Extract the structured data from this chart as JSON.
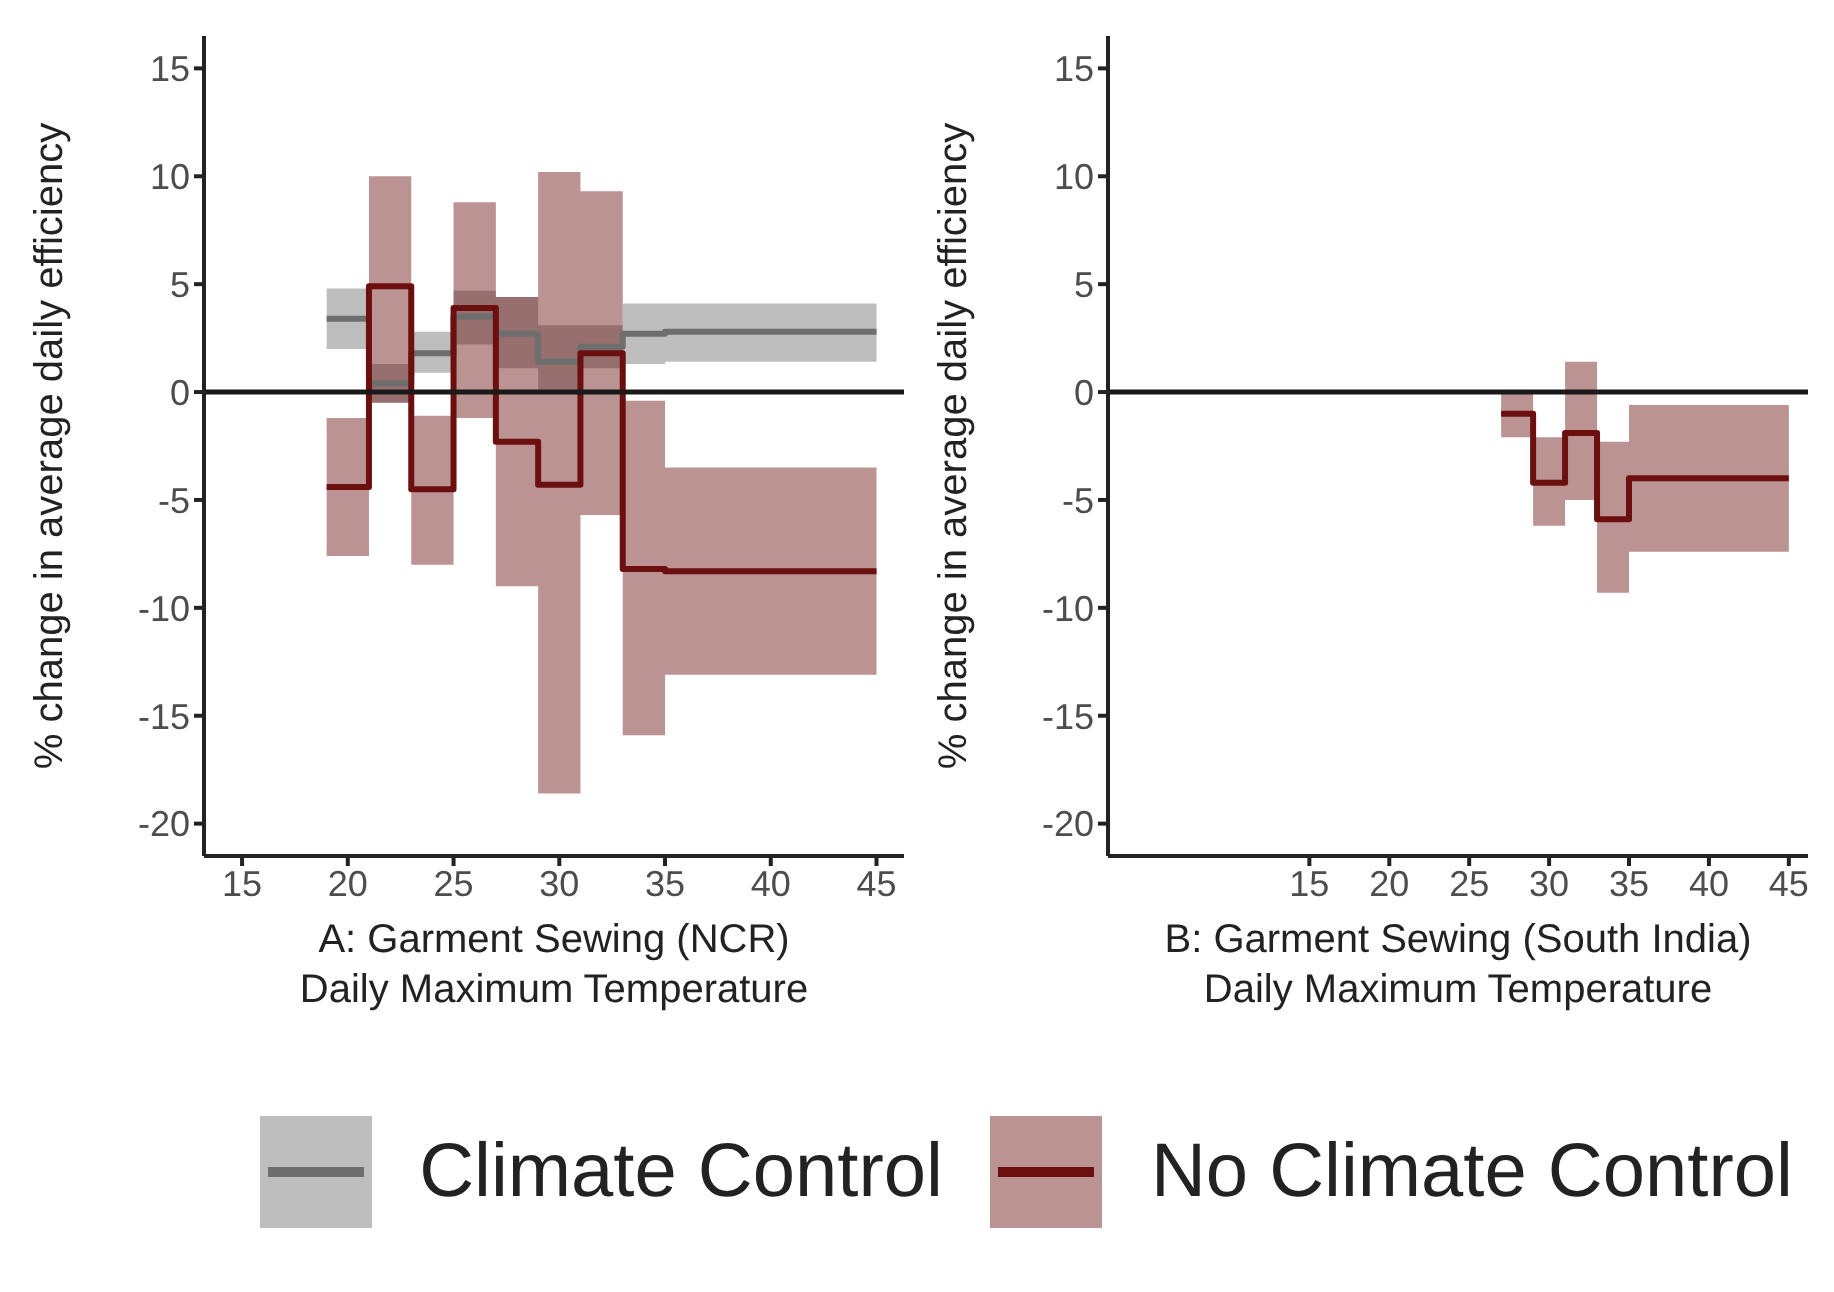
{
  "chart_data": [
    {
      "type": "step",
      "xlabel": "A: Garment Sewing (NCR)\nDaily Maximum Temperature",
      "ylabel": "% change in average daily efficiency",
      "xlim": [
        13.2,
        46.3
      ],
      "xticks": [
        15,
        20,
        25,
        30,
        35,
        40,
        45
      ],
      "ylim": [
        -21.5,
        16.5
      ],
      "yticks": [
        -20,
        -15,
        -10,
        -5,
        0,
        5,
        10,
        15
      ],
      "legend": "bottom",
      "ref_lines": [
        {
          "axis": "y",
          "value": 0,
          "color": "#1a1a1a"
        }
      ],
      "series": [
        {
          "name": "Climate Control",
          "color": "#6e6e6e",
          "x": [
            19,
            21,
            23,
            25,
            27,
            29,
            31,
            33,
            35,
            45
          ],
          "values": [
            3.4,
            0.4,
            1.8,
            3.5,
            2.7,
            1.4,
            2.1,
            2.7,
            2.8,
            2.8
          ],
          "lower": [
            2.0,
            -0.5,
            0.9,
            2.2,
            1.1,
            -0.1,
            1.1,
            1.3,
            1.4,
            1.4
          ],
          "upper": [
            4.8,
            1.3,
            2.8,
            4.7,
            4.4,
            3.1,
            3.1,
            4.1,
            4.1,
            4.1
          ]
        },
        {
          "name": "No Climate Control",
          "color": "#6b0f0f",
          "x": [
            19,
            21,
            23,
            25,
            27,
            29,
            31,
            33,
            35,
            45
          ],
          "values": [
            -4.4,
            4.9,
            -4.5,
            3.9,
            -2.3,
            -4.3,
            1.8,
            -8.2,
            -8.3,
            -8.3
          ],
          "lower": [
            -7.6,
            -0.5,
            -8.0,
            -1.2,
            -9.0,
            -18.6,
            -5.7,
            -15.9,
            -13.1,
            -13.1
          ],
          "upper": [
            -1.2,
            10.0,
            -1.1,
            8.8,
            4.4,
            10.2,
            9.3,
            -0.4,
            -3.5,
            -3.5
          ]
        }
      ]
    },
    {
      "type": "step",
      "xlabel": "B: Garment Sewing (South India)\nDaily Maximum Temperature",
      "ylabel": "% change in average daily efficiency",
      "xlim": [
        2.4,
        46.2
      ],
      "xticks": [
        15,
        20,
        25,
        30,
        35,
        40,
        45
      ],
      "ylim": [
        -21.5,
        16.5
      ],
      "yticks": [
        -20,
        -15,
        -10,
        -5,
        0,
        5,
        10,
        15
      ],
      "ref_lines": [
        {
          "axis": "y",
          "value": 0,
          "color": "#1a1a1a"
        }
      ],
      "series": [
        {
          "color": "#6b0f0f",
          "x": [
            27,
            29,
            31,
            33,
            35,
            45
          ],
          "values": [
            -1.0,
            -4.2,
            -1.9,
            -5.9,
            -4.0,
            -4.0
          ],
          "lower": [
            -2.1,
            -6.2,
            -5.0,
            -9.3,
            -7.4,
            -7.4
          ],
          "upper": [
            0,
            -2.1,
            1.4,
            -2.3,
            -0.6,
            -0.6
          ]
        }
      ]
    }
  ]
}
